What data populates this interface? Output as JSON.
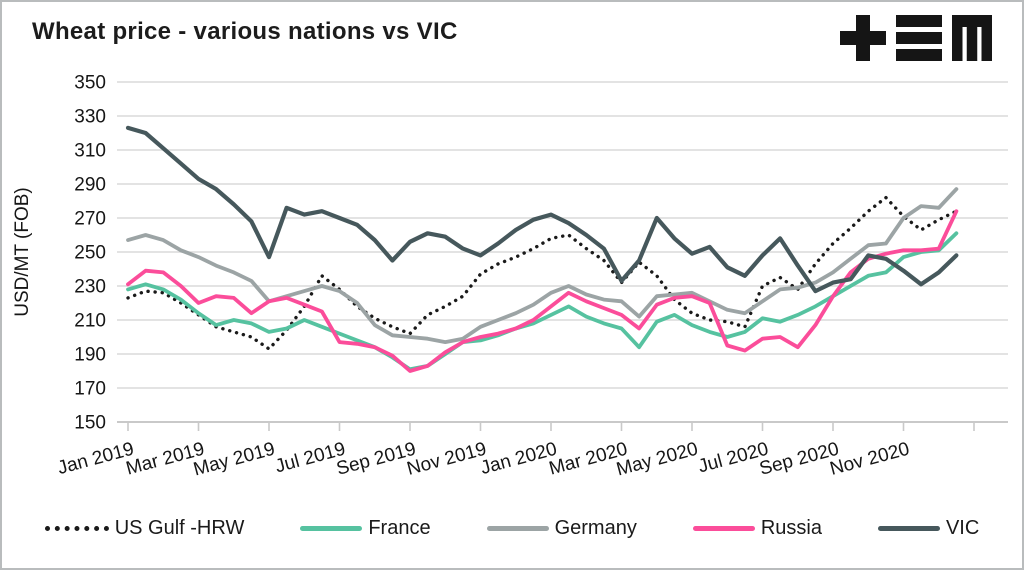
{
  "title": "Wheat price - various nations vs VIC",
  "logo": {
    "icon": "tem-logo",
    "color": "#151515"
  },
  "y_axis": {
    "title": "USD/MT (FOB)"
  },
  "chart_data": {
    "type": "line",
    "title": "Wheat price - various nations vs VIC",
    "ylabel": "USD/MT (FOB)",
    "xlabel": "",
    "ylim": [
      150,
      350
    ],
    "y_ticks": [
      350,
      330,
      310,
      290,
      270,
      250,
      230,
      210,
      190,
      170,
      150
    ],
    "x_tick_labels": [
      "Jan 2019",
      "Mar 2019",
      "May 2019",
      "Jul 2019",
      "Sep 2019",
      "Nov 2019",
      "Jan 2020",
      "Mar 2020",
      "May 2020",
      "Jul 2020",
      "Sep 2020",
      "Nov 2020"
    ],
    "x_domain": "Jan 2019 to Dec 2020, approx. biweekly samples (48 points per series)",
    "grid": "horizontal-only",
    "legend_position": "bottom",
    "axis_color": "#c9c9c9",
    "gridline_color": "#dadada",
    "series": [
      {
        "name": "US Gulf -HRW",
        "color": "#1a1a1a",
        "line_style": "dotted",
        "values": [
          223,
          227,
          226,
          220,
          213,
          206,
          203,
          200,
          193,
          204,
          218,
          236,
          228,
          218,
          211,
          206,
          202,
          213,
          218,
          224,
          237,
          243,
          247,
          252,
          258,
          260,
          252,
          245,
          232,
          244,
          236,
          222,
          214,
          210,
          209,
          206,
          230,
          235,
          228,
          243,
          255,
          264,
          274,
          282,
          271,
          263,
          269,
          274
        ]
      },
      {
        "name": "France",
        "color": "#56c2a0",
        "line_style": "solid",
        "values": [
          228,
          231,
          228,
          222,
          214,
          207,
          210,
          208,
          203,
          205,
          210,
          206,
          202,
          198,
          194,
          188,
          181,
          183,
          190,
          197,
          198,
          201,
          205,
          208,
          213,
          218,
          212,
          208,
          205,
          194,
          209,
          213,
          207,
          203,
          200,
          203,
          211,
          209,
          213,
          218,
          224,
          230,
          236,
          238,
          247,
          250,
          251,
          261
        ]
      },
      {
        "name": "Germany",
        "color": "#9ca4a5",
        "line_style": "solid",
        "values": [
          257,
          260,
          257,
          251,
          247,
          242,
          238,
          233,
          221,
          224,
          227,
          230,
          227,
          220,
          207,
          201,
          200,
          199,
          197,
          199,
          206,
          210,
          214,
          219,
          226,
          230,
          225,
          222,
          221,
          212,
          224,
          225,
          226,
          221,
          216,
          214,
          221,
          228,
          229,
          232,
          238,
          246,
          254,
          255,
          270,
          277,
          276,
          287
        ]
      },
      {
        "name": "Russia",
        "color": "#fb4d9a",
        "line_style": "solid",
        "values": [
          231,
          239,
          238,
          230,
          220,
          224,
          223,
          214,
          221,
          223,
          219,
          215,
          197,
          196,
          194,
          189,
          180,
          183,
          191,
          197,
          200,
          202,
          205,
          210,
          218,
          226,
          221,
          217,
          213,
          205,
          219,
          223,
          224,
          220,
          195,
          192,
          199,
          200,
          194,
          207,
          224,
          238,
          246,
          249,
          251,
          251,
          252,
          274
        ]
      },
      {
        "name": "VIC",
        "color": "#46585c",
        "line_style": "solid",
        "values": [
          323,
          320,
          311,
          302,
          293,
          287,
          278,
          268,
          247,
          276,
          272,
          274,
          270,
          266,
          257,
          245,
          256,
          261,
          259,
          252,
          248,
          255,
          263,
          269,
          272,
          267,
          260,
          252,
          233,
          245,
          270,
          258,
          249,
          253,
          241,
          236,
          248,
          258,
          242,
          227,
          232,
          234,
          248,
          246,
          239,
          231,
          238,
          248
        ]
      }
    ]
  }
}
